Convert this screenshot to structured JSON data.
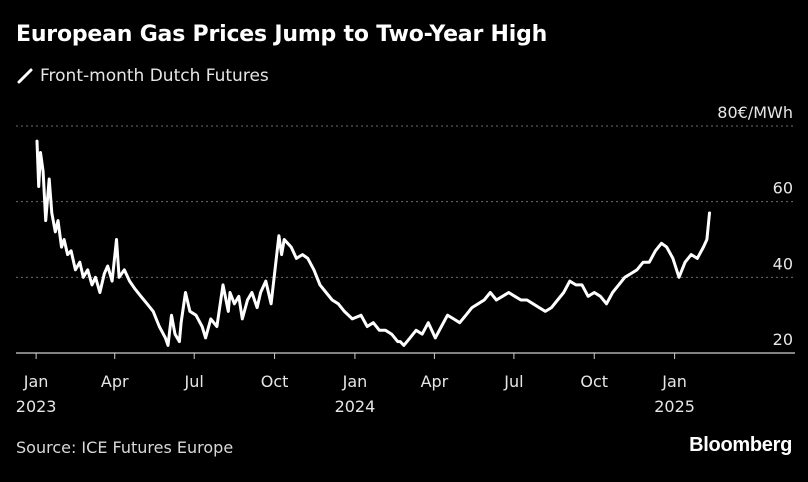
{
  "colors": {
    "background": "#000000",
    "line": "#ffffff",
    "grid": "#6e6e6e",
    "text": "#e6e6e6"
  },
  "header": {
    "title": "European Gas Prices Jump to Two-Year High"
  },
  "legend": {
    "label": "Front-month Dutch Futures"
  },
  "footer": {
    "source": "Source: ICE Futures Europe",
    "brand": "Bloomberg"
  },
  "chart_data": {
    "type": "line",
    "title": "European Gas Prices Jump to Two-Year High",
    "xlabel": "",
    "ylabel": "",
    "y_unit": "€/MWh",
    "ylim": [
      15,
      80
    ],
    "yticks": [
      20,
      40,
      60,
      80
    ],
    "ytick_labels": [
      "20",
      "40",
      "60",
      "80€/MWh"
    ],
    "xlim": [
      "2023-01-02",
      "2025-03-10"
    ],
    "xticks": [
      {
        "date": "2023-01-01",
        "label": "Jan",
        "sublabel": "2023"
      },
      {
        "date": "2023-04-01",
        "label": "Apr",
        "sublabel": ""
      },
      {
        "date": "2023-07-01",
        "label": "Jul",
        "sublabel": ""
      },
      {
        "date": "2023-10-01",
        "label": "Oct",
        "sublabel": ""
      },
      {
        "date": "2024-01-01",
        "label": "Jan",
        "sublabel": "2024"
      },
      {
        "date": "2024-04-01",
        "label": "Apr",
        "sublabel": ""
      },
      {
        "date": "2024-07-01",
        "label": "Jul",
        "sublabel": ""
      },
      {
        "date": "2024-10-01",
        "label": "Oct",
        "sublabel": ""
      },
      {
        "date": "2025-01-01",
        "label": "Jan",
        "sublabel": "2025"
      }
    ],
    "grid": true,
    "legend_position": "top-left",
    "series": [
      {
        "name": "Front-month Dutch Futures",
        "x": [
          "2023-01-02",
          "2023-01-04",
          "2023-01-06",
          "2023-01-09",
          "2023-01-12",
          "2023-01-16",
          "2023-01-19",
          "2023-01-23",
          "2023-01-26",
          "2023-01-30",
          "2023-02-02",
          "2023-02-06",
          "2023-02-10",
          "2023-02-15",
          "2023-02-20",
          "2023-02-24",
          "2023-03-01",
          "2023-03-06",
          "2023-03-10",
          "2023-03-15",
          "2023-03-20",
          "2023-03-24",
          "2023-03-29",
          "2023-04-03",
          "2023-04-06",
          "2023-04-12",
          "2023-04-18",
          "2023-04-24",
          "2023-05-01",
          "2023-05-08",
          "2023-05-15",
          "2023-05-22",
          "2023-05-29",
          "2023-06-01",
          "2023-06-05",
          "2023-06-09",
          "2023-06-14",
          "2023-06-16",
          "2023-06-21",
          "2023-06-26",
          "2023-07-03",
          "2023-07-10",
          "2023-07-14",
          "2023-07-20",
          "2023-07-27",
          "2023-08-03",
          "2023-08-09",
          "2023-08-11",
          "2023-08-16",
          "2023-08-21",
          "2023-08-25",
          "2023-08-31",
          "2023-09-05",
          "2023-09-11",
          "2023-09-15",
          "2023-09-21",
          "2023-09-27",
          "2023-10-03",
          "2023-10-06",
          "2023-10-09",
          "2023-10-12",
          "2023-10-16",
          "2023-10-20",
          "2023-10-26",
          "2023-11-02",
          "2023-11-08",
          "2023-11-15",
          "2023-11-22",
          "2023-11-29",
          "2023-12-06",
          "2023-12-13",
          "2023-12-20",
          "2023-12-29",
          "2024-01-08",
          "2024-01-15",
          "2024-01-22",
          "2024-01-29",
          "2024-02-05",
          "2024-02-12",
          "2024-02-19",
          "2024-02-22",
          "2024-02-26",
          "2024-03-04",
          "2024-03-11",
          "2024-03-18",
          "2024-03-25",
          "2024-04-02",
          "2024-04-09",
          "2024-04-16",
          "2024-04-23",
          "2024-04-30",
          "2024-05-07",
          "2024-05-14",
          "2024-05-21",
          "2024-05-28",
          "2024-06-04",
          "2024-06-11",
          "2024-06-18",
          "2024-06-25",
          "2024-07-02",
          "2024-07-09",
          "2024-07-16",
          "2024-07-23",
          "2024-07-30",
          "2024-08-06",
          "2024-08-13",
          "2024-08-20",
          "2024-08-27",
          "2024-09-03",
          "2024-09-10",
          "2024-09-17",
          "2024-09-24",
          "2024-10-01",
          "2024-10-08",
          "2024-10-15",
          "2024-10-22",
          "2024-10-29",
          "2024-11-05",
          "2024-11-12",
          "2024-11-19",
          "2024-11-26",
          "2024-12-03",
          "2024-12-10",
          "2024-12-17",
          "2024-12-23",
          "2024-12-30",
          "2025-01-06",
          "2025-01-13",
          "2025-01-20",
          "2025-01-27",
          "2025-02-03",
          "2025-02-07",
          "2025-02-10"
        ],
        "values": [
          76,
          64,
          73,
          68,
          55,
          66,
          57,
          52,
          55,
          48,
          50,
          46,
          47,
          42,
          44,
          40,
          42,
          38,
          40,
          36,
          41,
          43,
          39,
          50,
          40,
          42,
          39,
          37,
          35,
          33,
          31,
          27,
          24,
          22,
          30,
          25,
          23,
          28,
          36,
          31,
          30,
          27,
          24,
          29,
          27,
          38,
          31,
          36,
          33,
          35,
          29,
          34,
          36,
          32,
          36,
          39,
          33,
          45,
          51,
          46,
          50,
          49,
          48,
          45,
          46,
          45,
          42,
          38,
          36,
          34,
          33,
          31,
          29,
          30,
          27,
          28,
          26,
          26,
          25,
          23,
          23,
          22,
          24,
          26,
          25,
          28,
          24,
          27,
          30,
          29,
          28,
          30,
          32,
          33,
          34,
          36,
          34,
          35,
          36,
          35,
          34,
          34,
          33,
          32,
          31,
          32,
          34,
          36,
          39,
          38,
          38,
          35,
          36,
          35,
          33,
          36,
          38,
          40,
          41,
          42,
          44,
          44,
          47,
          49,
          48,
          45,
          40,
          44,
          46,
          45,
          48,
          50,
          57
        ]
      }
    ]
  }
}
